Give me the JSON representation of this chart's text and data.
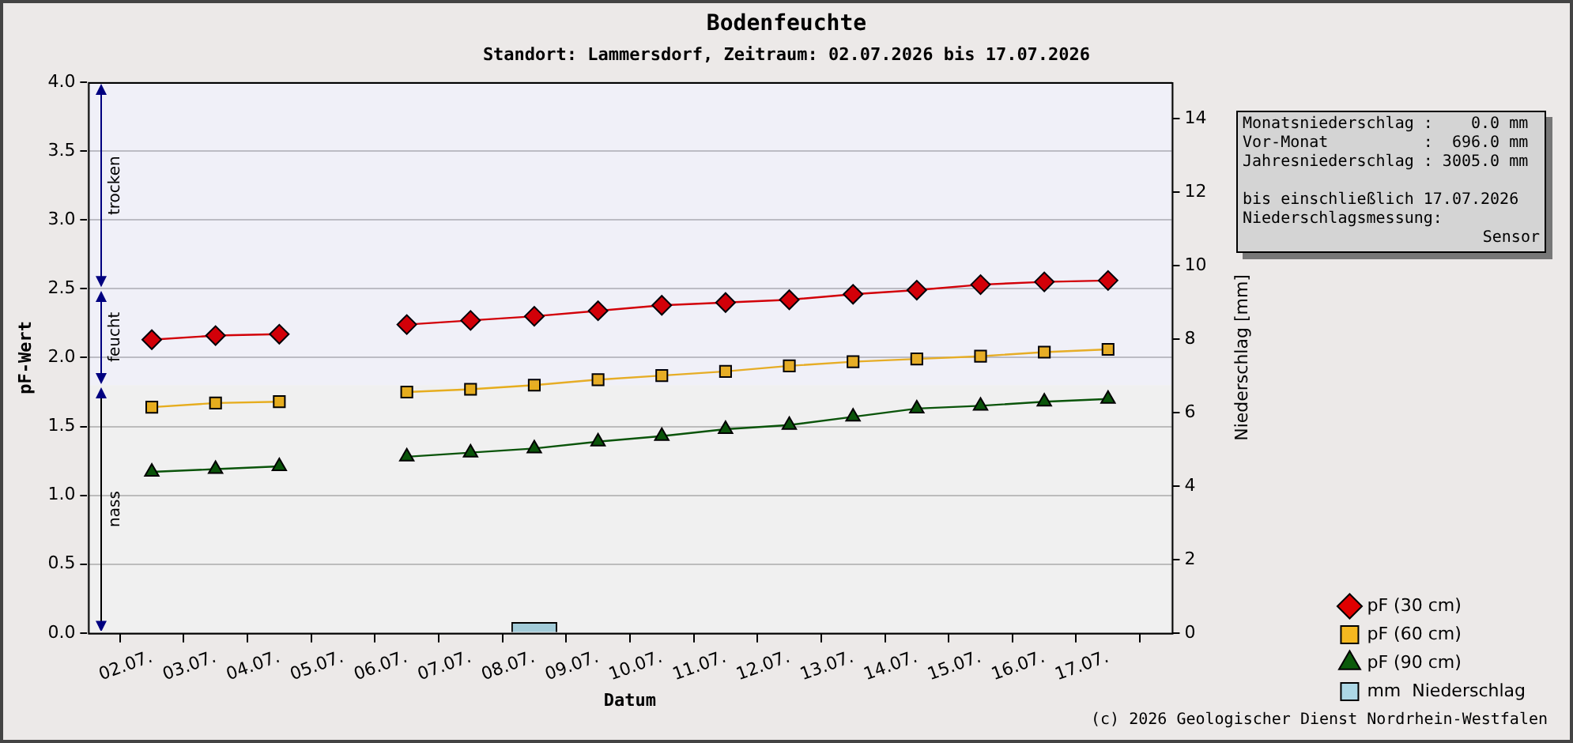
{
  "chart_data": {
    "type": "line",
    "title": "Bodenfeuchte",
    "subtitle": "Standort: Lammersdorf, Zeitraum: 02.07.2026 bis 17.07.2026",
    "xlabel": "Datum",
    "ylabel": "pF-Wert",
    "y2label": "Niederschlag [mm]",
    "categories": [
      "02.07.",
      "03.07.",
      "04.07.",
      "05.07.",
      "06.07.",
      "07.07.",
      "08.07.",
      "09.07.",
      "10.07.",
      "11.07.",
      "12.07.",
      "13.07.",
      "14.07.",
      "15.07.",
      "16.07.",
      "17.07."
    ],
    "series": [
      {
        "name": "pF (30 cm)",
        "color": "#e00000",
        "marker": "diamond",
        "values": [
          2.13,
          2.16,
          2.17,
          null,
          2.24,
          2.27,
          2.3,
          2.34,
          2.38,
          2.4,
          2.42,
          2.46,
          2.49,
          2.53,
          2.55,
          2.56
        ]
      },
      {
        "name": "pF (60 cm)",
        "color": "#f5b820",
        "marker": "square",
        "values": [
          1.64,
          1.67,
          1.68,
          null,
          1.75,
          1.77,
          1.8,
          1.84,
          1.87,
          1.9,
          1.94,
          1.97,
          1.99,
          2.01,
          2.04,
          2.06
        ]
      },
      {
        "name": "pF (90 cm)",
        "color": "#0b5a0b",
        "marker": "triangle",
        "values": [
          1.17,
          1.19,
          1.21,
          null,
          1.28,
          1.31,
          1.34,
          1.39,
          1.43,
          1.48,
          1.51,
          1.57,
          1.63,
          1.65,
          1.68,
          1.7
        ]
      },
      {
        "name": "mm  Niederschlag",
        "type": "bar",
        "axis": "y2",
        "color": "#add8e6",
        "values": [
          0,
          0,
          0,
          0,
          0,
          0,
          0.3,
          0,
          0,
          0,
          0,
          0,
          0,
          0,
          0,
          0
        ]
      }
    ],
    "ylim": [
      0,
      4
    ],
    "yticks": [
      {
        "value": 0,
        "label": "0.0"
      },
      {
        "value": 0.5,
        "label": "0.5"
      },
      {
        "value": 1,
        "label": "1.0"
      },
      {
        "value": 1.5,
        "label": "1.5"
      },
      {
        "value": 2,
        "label": "2.0"
      },
      {
        "value": 2.5,
        "label": "2.5"
      },
      {
        "value": 3,
        "label": "3.0"
      },
      {
        "value": 3.5,
        "label": "3.5"
      },
      {
        "value": 4,
        "label": "4.0"
      }
    ],
    "y2lim": [
      0,
      15
    ],
    "y2ticks": [
      0,
      2,
      4,
      6,
      8,
      10,
      12,
      14
    ],
    "bands": [
      {
        "axis": "y",
        "from": 2.5,
        "to": 4.0,
        "label": "trocken",
        "color": "#000080"
      },
      {
        "axis": "y",
        "from": 1.8,
        "to": 2.5,
        "label": "feucht",
        "color": "#000080"
      },
      {
        "axis": "y",
        "from": 0,
        "to": 1.8,
        "label": "nass",
        "color": "#000000"
      }
    ],
    "grid": "y",
    "legend": "bottom right",
    "line_style": "solid",
    "annotations": [
      "Monatsniederschlag :    0.0 mm",
      "Vor-Monat          :  696.0 mm",
      "Jahresniederschlag : 3005.0 mm",
      "bis einschließlich 17.07.2026",
      "Niederschlagsmessung:",
      "Sensor",
      "(c) 2026 Geologischer Dienst Nordrhein-Westfalen"
    ]
  }
}
